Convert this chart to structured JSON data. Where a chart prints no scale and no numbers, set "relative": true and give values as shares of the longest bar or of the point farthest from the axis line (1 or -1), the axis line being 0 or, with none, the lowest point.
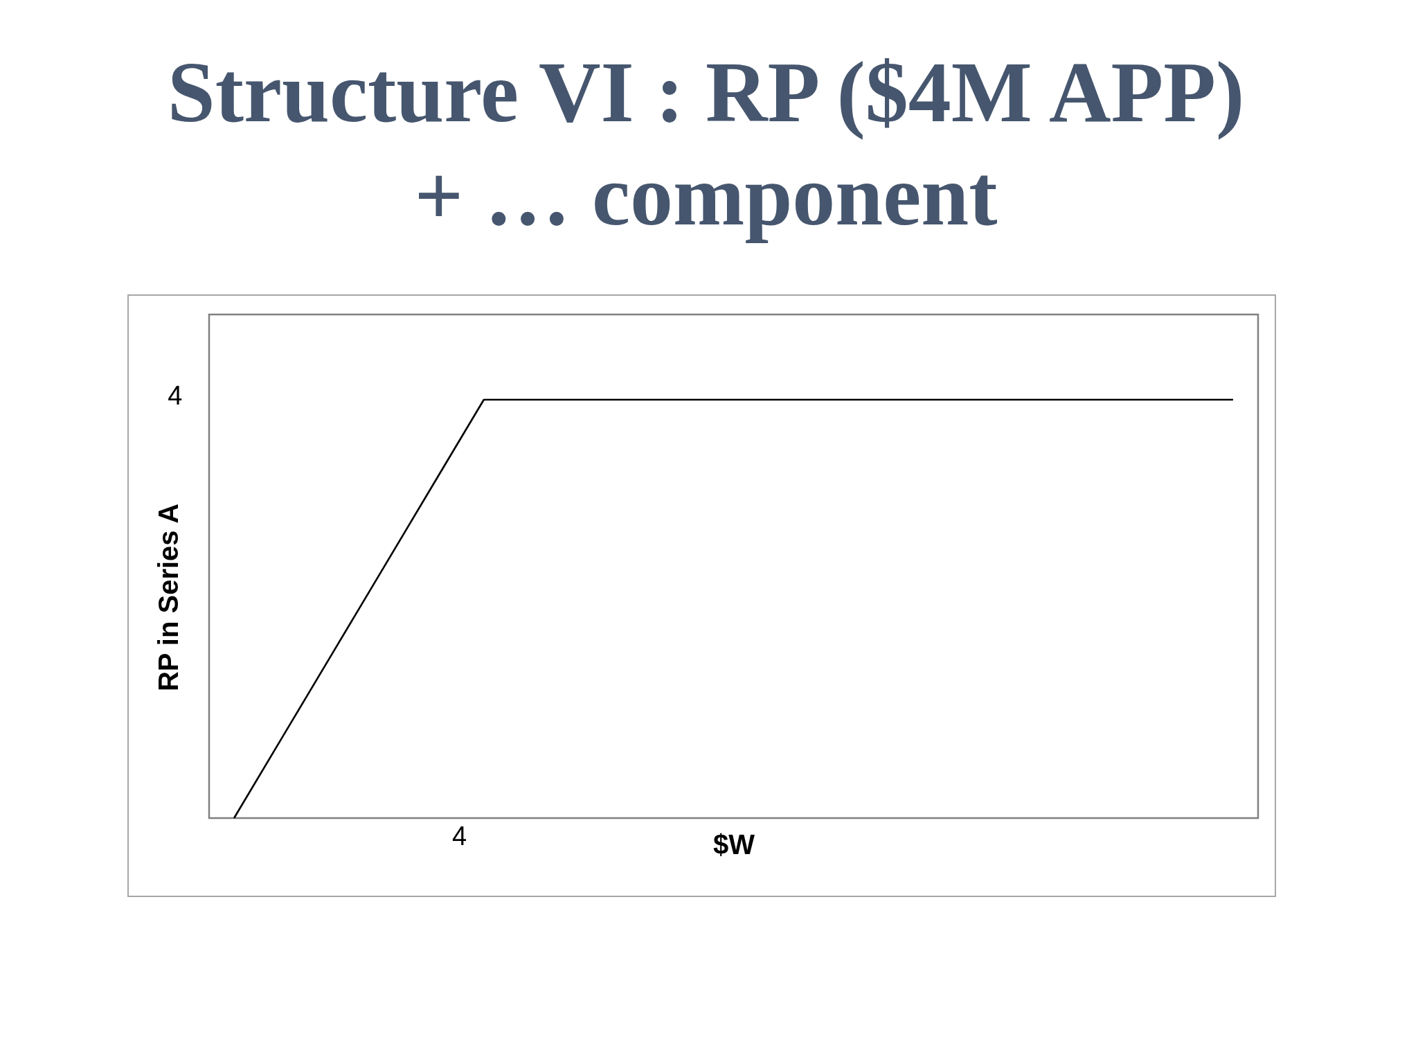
{
  "chart_data": {
    "type": "line",
    "title": "Structure VI : RP ($4M APP) + … component",
    "xlabel": "$W",
    "ylabel": "RP in Series A",
    "categories": [
      null,
      null,
      null,
      null,
      null,
      null,
      null,
      null,
      null,
      null,
      null,
      null,
      null,
      null,
      null,
      null,
      null,
      null,
      null,
      null,
      null
    ],
    "relative": true,
    "series": [
      {
        "color": "#000000",
        "values": [
          0,
          0.2,
          0.4,
          0.6,
          0.8,
          1,
          1,
          1,
          1,
          1,
          1,
          1,
          1,
          1,
          1,
          1,
          1,
          1,
          1,
          1,
          1
        ]
      }
    ],
    "annotations": [
      "4",
      "4"
    ],
    "grid": false,
    "marker": "none",
    "line_style": "solid"
  }
}
